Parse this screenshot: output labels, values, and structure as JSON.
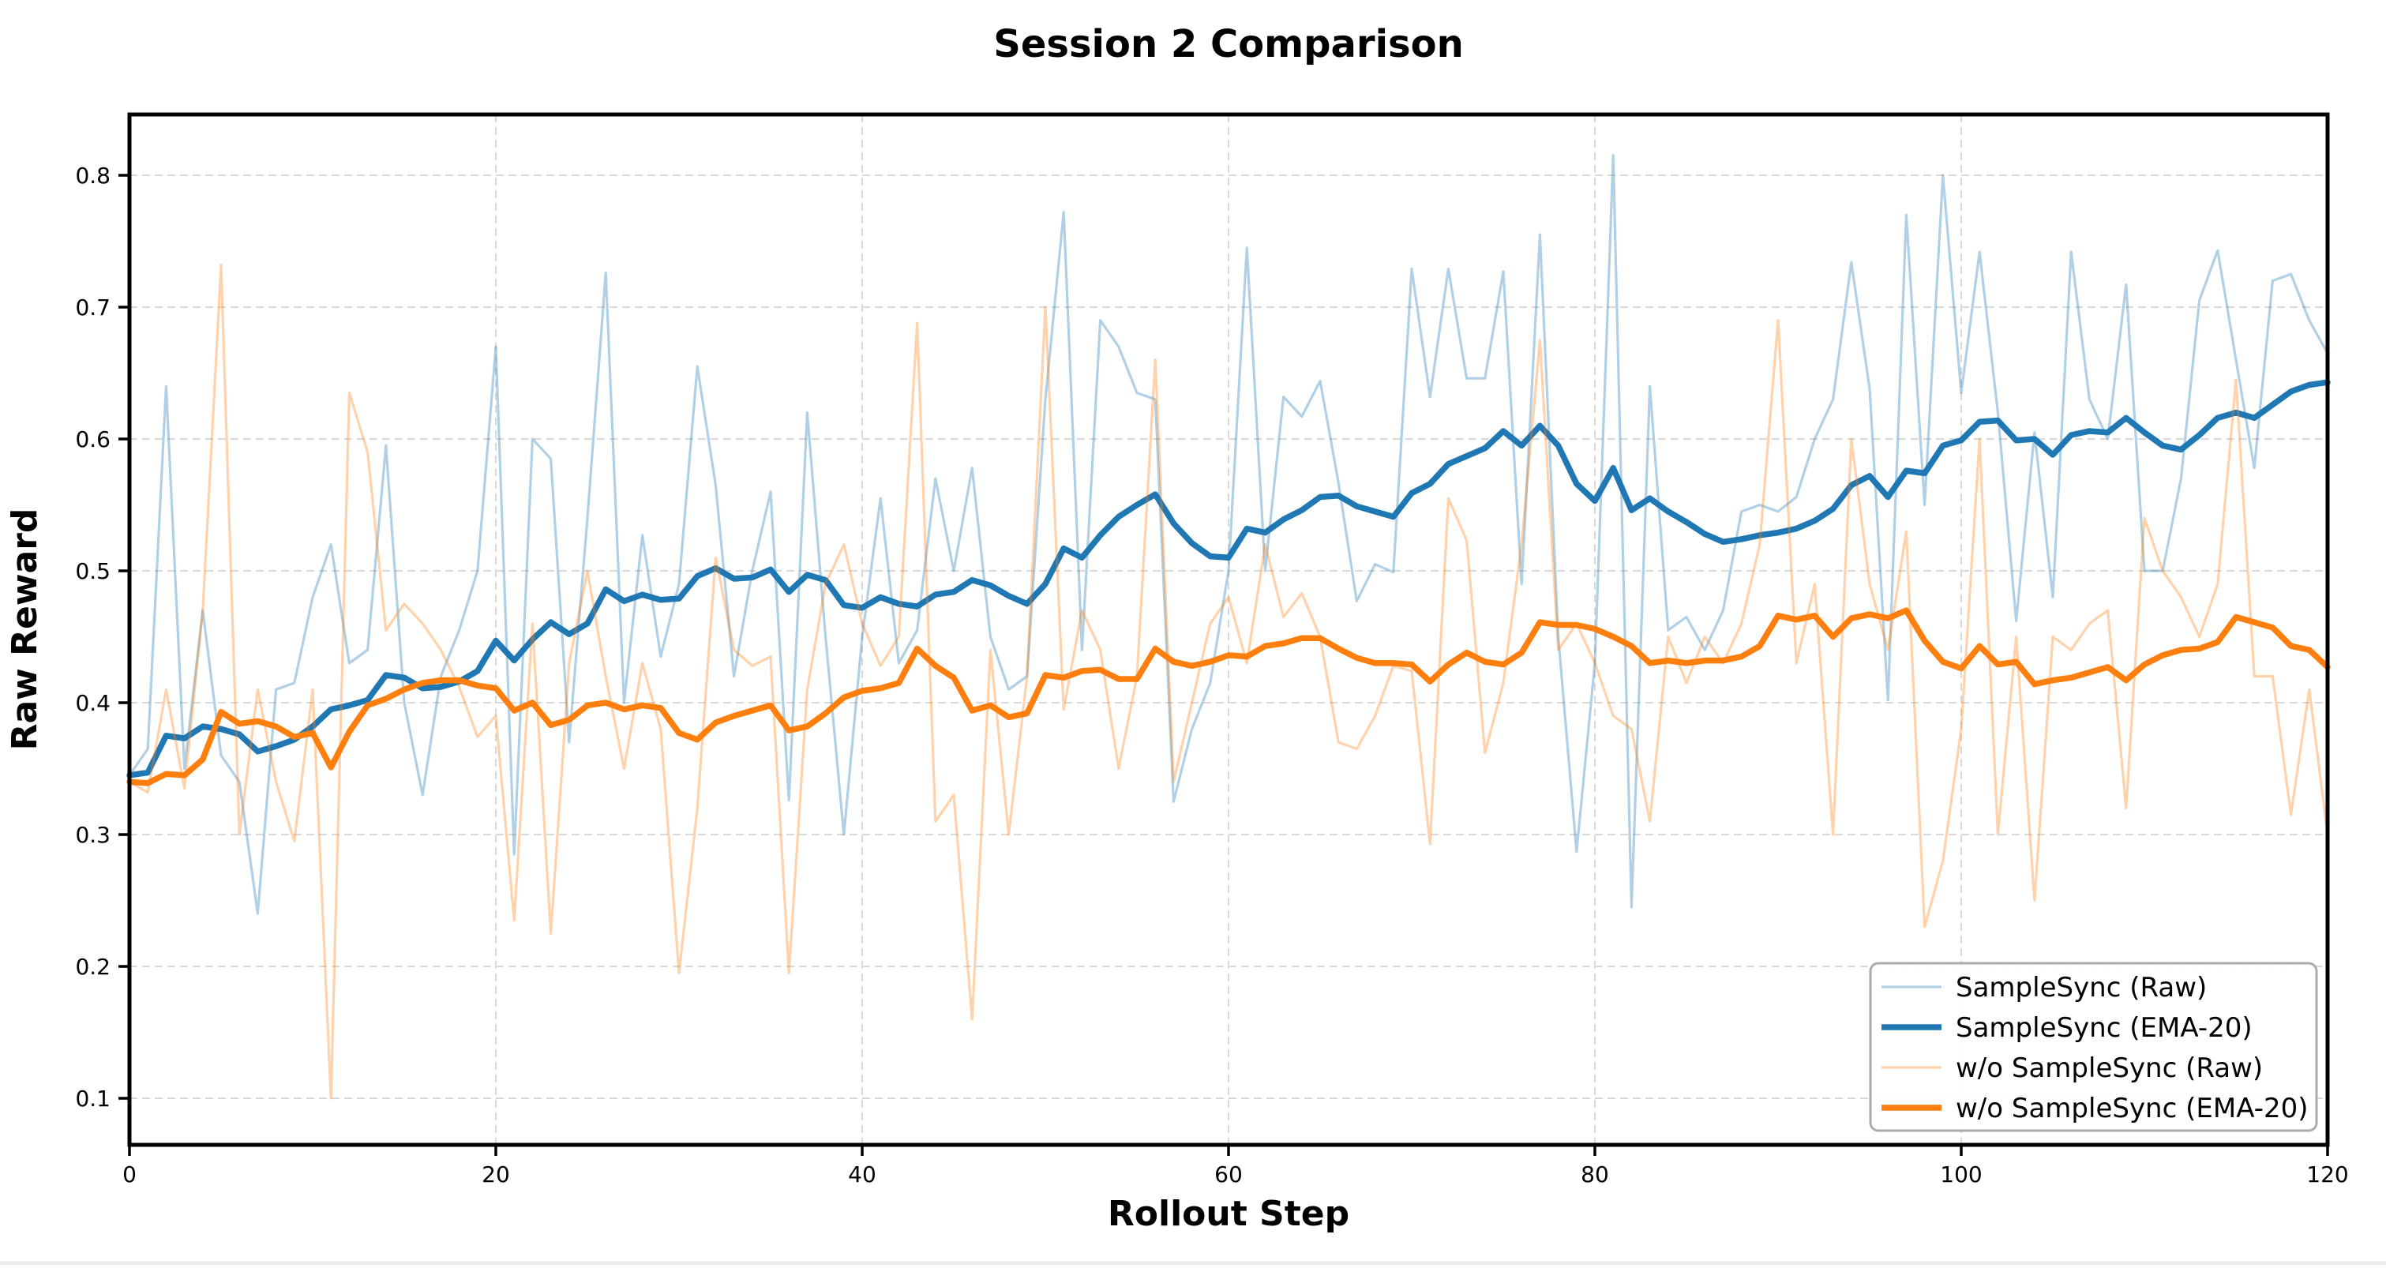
{
  "chart_data": {
    "type": "line",
    "title": "Session 2 Comparison",
    "xlabel": "Rollout Step",
    "ylabel": "Raw Reward",
    "xlim": [
      0,
      120
    ],
    "ylim": [
      0.0647,
      0.8461
    ],
    "x_ticks": [
      0,
      20,
      40,
      60,
      80,
      100,
      120
    ],
    "y_ticks": [
      0.1,
      0.2,
      0.3,
      0.4,
      0.5,
      0.6,
      0.7,
      0.8
    ],
    "x_start": 0,
    "x_step": 1,
    "grid": {
      "style": "dashed",
      "color": "#d9d9d9"
    },
    "axis_color": "#000000",
    "background": "#ffffff",
    "legend": {
      "position": "lower right",
      "border_color": "#ababab",
      "background": "#ffffff"
    },
    "series": [
      {
        "name": "SampleSync (Raw)",
        "color": "#1f77b4",
        "opacity": 0.35,
        "width": 3.2,
        "values": [
          0.345,
          0.365,
          0.64,
          0.35,
          0.47,
          0.36,
          0.34,
          0.24,
          0.41,
          0.415,
          0.48,
          0.52,
          0.43,
          0.44,
          0.595,
          0.4,
          0.33,
          0.42,
          0.455,
          0.5,
          0.67,
          0.285,
          0.6,
          0.585,
          0.37,
          0.54,
          0.726,
          0.4,
          0.527,
          0.435,
          0.49,
          0.655,
          0.565,
          0.42,
          0.5,
          0.56,
          0.326,
          0.62,
          0.45,
          0.3,
          0.45,
          0.555,
          0.43,
          0.455,
          0.57,
          0.5,
          0.578,
          0.45,
          0.41,
          0.42,
          0.63,
          0.772,
          0.44,
          0.69,
          0.67,
          0.635,
          0.63,
          0.325,
          0.38,
          0.415,
          0.5,
          0.745,
          0.5,
          0.632,
          0.617,
          0.644,
          0.567,
          0.477,
          0.505,
          0.499,
          0.729,
          0.632,
          0.729,
          0.646,
          0.646,
          0.727,
          0.49,
          0.755,
          0.45,
          0.287,
          0.43,
          0.815,
          0.245,
          0.64,
          0.455,
          0.465,
          0.44,
          0.47,
          0.545,
          0.55,
          0.545,
          0.556,
          0.6,
          0.63,
          0.734,
          0.638,
          0.402,
          0.77,
          0.55,
          0.8,
          0.635,
          0.742,
          0.62,
          0.462,
          0.605,
          0.48,
          0.742,
          0.63,
          0.6,
          0.717,
          0.5,
          0.5,
          0.57,
          0.705,
          0.743,
          0.66,
          0.578,
          0.72,
          0.725,
          0.69,
          0.665
        ]
      },
      {
        "name": "SampleSync (EMA-20)",
        "color": "#1f77b4",
        "opacity": 1,
        "width": 7.5,
        "values": [
          0.345,
          0.347,
          0.375,
          0.373,
          0.382,
          0.38,
          0.376,
          0.363,
          0.367,
          0.372,
          0.382,
          0.395,
          0.398,
          0.402,
          0.421,
          0.419,
          0.411,
          0.412,
          0.416,
          0.424,
          0.447,
          0.432,
          0.448,
          0.461,
          0.452,
          0.46,
          0.486,
          0.477,
          0.482,
          0.478,
          0.479,
          0.496,
          0.502,
          0.494,
          0.495,
          0.501,
          0.484,
          0.497,
          0.493,
          0.474,
          0.472,
          0.48,
          0.475,
          0.473,
          0.482,
          0.484,
          0.493,
          0.489,
          0.481,
          0.475,
          0.49,
          0.517,
          0.51,
          0.527,
          0.541,
          0.55,
          0.558,
          0.536,
          0.521,
          0.511,
          0.51,
          0.532,
          0.529,
          0.539,
          0.546,
          0.556,
          0.557,
          0.549,
          0.545,
          0.541,
          0.559,
          0.566,
          0.581,
          0.587,
          0.593,
          0.606,
          0.595,
          0.61,
          0.595,
          0.566,
          0.553,
          0.578,
          0.546,
          0.555,
          0.545,
          0.537,
          0.528,
          0.522,
          0.524,
          0.527,
          0.529,
          0.532,
          0.538,
          0.547,
          0.565,
          0.572,
          0.556,
          0.576,
          0.574,
          0.595,
          0.599,
          0.613,
          0.614,
          0.599,
          0.6,
          0.588,
          0.603,
          0.606,
          0.605,
          0.616,
          0.605,
          0.595,
          0.592,
          0.603,
          0.616,
          0.62,
          0.616,
          0.626,
          0.636,
          0.641,
          0.643
        ]
      },
      {
        "name": "w/o SampleSync (Raw)",
        "color": "#ff7f0e",
        "opacity": 0.35,
        "width": 3.2,
        "values": [
          0.34,
          0.332,
          0.41,
          0.335,
          0.47,
          0.732,
          0.3,
          0.41,
          0.34,
          0.295,
          0.41,
          0.1,
          0.635,
          0.59,
          0.455,
          0.475,
          0.46,
          0.44,
          0.412,
          0.374,
          0.39,
          0.235,
          0.46,
          0.225,
          0.43,
          0.5,
          0.42,
          0.35,
          0.43,
          0.38,
          0.195,
          0.32,
          0.51,
          0.44,
          0.428,
          0.435,
          0.195,
          0.41,
          0.49,
          0.52,
          0.46,
          0.428,
          0.45,
          0.688,
          0.31,
          0.33,
          0.16,
          0.44,
          0.3,
          0.42,
          0.7,
          0.395,
          0.47,
          0.44,
          0.35,
          0.42,
          0.66,
          0.34,
          0.4,
          0.46,
          0.48,
          0.43,
          0.52,
          0.465,
          0.483,
          0.45,
          0.37,
          0.365,
          0.39,
          0.428,
          0.424,
          0.293,
          0.555,
          0.523,
          0.362,
          0.415,
          0.52,
          0.675,
          0.44,
          0.46,
          0.43,
          0.39,
          0.38,
          0.31,
          0.45,
          0.415,
          0.45,
          0.43,
          0.46,
          0.52,
          0.69,
          0.43,
          0.49,
          0.3,
          0.6,
          0.49,
          0.44,
          0.53,
          0.23,
          0.28,
          0.38,
          0.6,
          0.3,
          0.45,
          0.25,
          0.45,
          0.44,
          0.46,
          0.47,
          0.32,
          0.54,
          0.5,
          0.48,
          0.45,
          0.49,
          0.645,
          0.42,
          0.42,
          0.315,
          0.41,
          0.3
        ]
      },
      {
        "name": "w/o SampleSync (EMA-20)",
        "color": "#ff7f0e",
        "opacity": 1,
        "width": 7.5,
        "values": [
          0.34,
          0.339,
          0.346,
          0.345,
          0.357,
          0.393,
          0.384,
          0.386,
          0.382,
          0.374,
          0.377,
          0.351,
          0.378,
          0.398,
          0.403,
          0.41,
          0.415,
          0.417,
          0.417,
          0.413,
          0.411,
          0.394,
          0.4,
          0.383,
          0.387,
          0.398,
          0.4,
          0.395,
          0.398,
          0.396,
          0.377,
          0.372,
          0.385,
          0.39,
          0.394,
          0.398,
          0.379,
          0.382,
          0.392,
          0.404,
          0.409,
          0.411,
          0.415,
          0.441,
          0.428,
          0.419,
          0.394,
          0.398,
          0.389,
          0.392,
          0.421,
          0.419,
          0.424,
          0.425,
          0.418,
          0.418,
          0.441,
          0.431,
          0.428,
          0.431,
          0.436,
          0.435,
          0.443,
          0.445,
          0.449,
          0.449,
          0.441,
          0.434,
          0.43,
          0.43,
          0.429,
          0.416,
          0.429,
          0.438,
          0.431,
          0.429,
          0.438,
          0.461,
          0.459,
          0.459,
          0.456,
          0.45,
          0.443,
          0.43,
          0.432,
          0.43,
          0.432,
          0.432,
          0.435,
          0.443,
          0.466,
          0.463,
          0.466,
          0.45,
          0.464,
          0.467,
          0.464,
          0.47,
          0.447,
          0.431,
          0.426,
          0.443,
          0.429,
          0.431,
          0.414,
          0.417,
          0.419,
          0.423,
          0.427,
          0.417,
          0.429,
          0.436,
          0.44,
          0.441,
          0.446,
          0.465,
          0.461,
          0.457,
          0.443,
          0.44,
          0.427
        ]
      }
    ]
  }
}
